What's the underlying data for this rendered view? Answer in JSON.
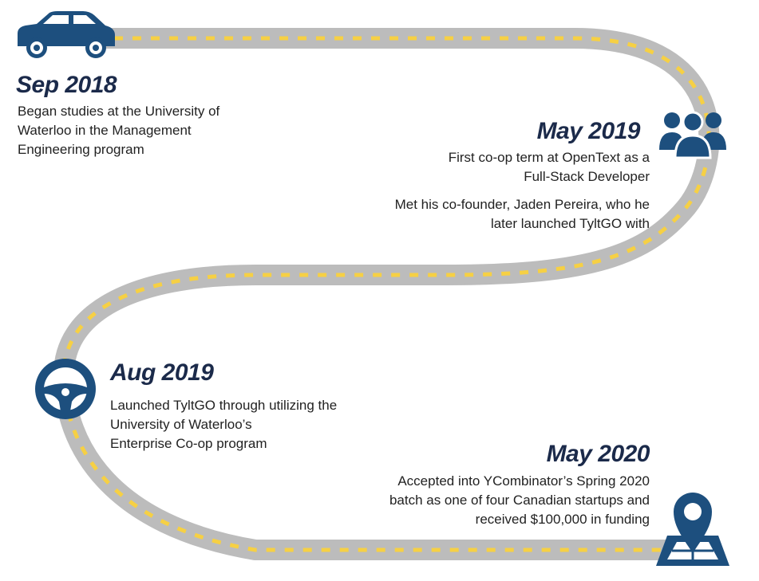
{
  "colors": {
    "road": "#bcbcbc",
    "lane_marking": "#f6d044",
    "icon": "#1d4f7e",
    "date_text": "#1b2a4a",
    "body_text": "#222222"
  },
  "milestones": [
    {
      "date": "Sep 2018",
      "icon": "car-icon",
      "lines": [
        "Began studies at the University of",
        "Waterloo in the Management",
        "Engineering program"
      ]
    },
    {
      "date": "May 2019",
      "icon": "people-icon",
      "lines": [
        "First co-op term at OpenText as a",
        "Full-Stack Developer"
      ],
      "lines2": [
        "Met his co-founder, Jaden Pereira, who he",
        "later launched TyltGO with"
      ]
    },
    {
      "date": "Aug 2019",
      "icon": "steering-wheel-icon",
      "lines": [
        "Launched TyltGO through utilizing the",
        "University of Waterloo’s",
        "Enterprise Co-op program"
      ]
    },
    {
      "date": "May 2020",
      "icon": "map-pin-icon",
      "lines": [
        "Accepted into YCombinator’s Spring 2020",
        "batch as one of four Canadian startups and",
        "received $100,000 in funding"
      ]
    }
  ]
}
